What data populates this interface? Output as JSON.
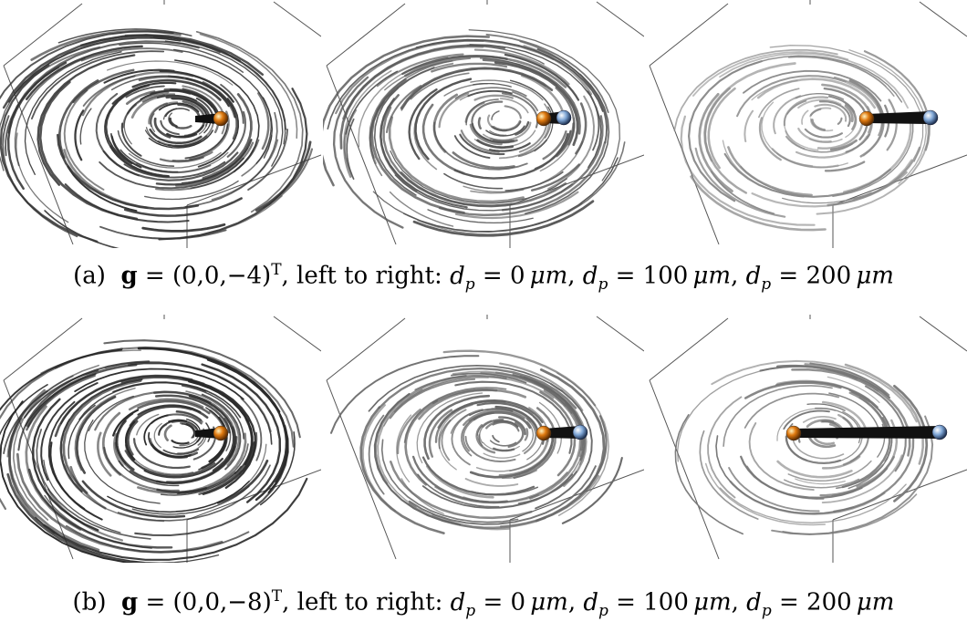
{
  "figure": {
    "rows": [
      {
        "label": "(a)",
        "g_value": "(0,0,−4)",
        "caption_prefix": ", left to right: ",
        "panels": [
          {
            "d_p": "0",
            "unit": "μm",
            "density": 1.0,
            "shade": "#333333",
            "sphere_b": false,
            "sphere_b_dx": 0,
            "sphere_a_dx": 0
          },
          {
            "d_p": "100",
            "unit": "μm",
            "density": 0.85,
            "shade": "#555555",
            "sphere_b": true,
            "sphere_b_dx": 22,
            "sphere_a_dx": 0
          },
          {
            "d_p": "200",
            "unit": "μm",
            "density": 0.55,
            "shade": "#888888",
            "sphere_b": true,
            "sphere_b_dx": 70,
            "sphere_a_dx": 0
          }
        ]
      },
      {
        "label": "(b)",
        "g_value": "(0,0,−8)",
        "caption_prefix": ", left to right: ",
        "panels": [
          {
            "d_p": "0",
            "unit": "μm",
            "density": 1.0,
            "shade": "#2a2a2a",
            "sphere_b": false,
            "sphere_b_dx": 0,
            "sphere_a_dx": 0
          },
          {
            "d_p": "100",
            "unit": "μm",
            "density": 0.75,
            "shade": "#666666",
            "sphere_b": true,
            "sphere_b_dx": 40,
            "sphere_a_dx": 0
          },
          {
            "d_p": "200",
            "unit": "μm",
            "density": 0.5,
            "shade": "#777777",
            "sphere_b": true,
            "sphere_b_dx": 80,
            "sphere_a_dx": -80
          }
        ]
      }
    ],
    "colors": {
      "sphere_orange": "#e07a10",
      "sphere_blue": "#7fa6d6",
      "box": "#555555"
    }
  }
}
